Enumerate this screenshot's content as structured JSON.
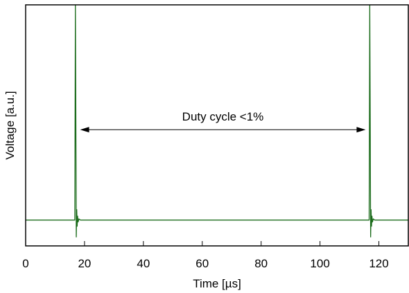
{
  "chart_data": {
    "type": "line",
    "title": "",
    "xlabel": "Time [µs]",
    "ylabel": "Voltage [a.u.]",
    "xlim": [
      0,
      130
    ],
    "ylim": [
      -0.12,
      1.0
    ],
    "x_ticks": [
      0,
      20,
      40,
      60,
      80,
      100,
      120
    ],
    "x_tick_labels": [
      "0",
      "20",
      "40",
      "60",
      "80",
      "100",
      "120"
    ],
    "y_ticks_labeled": false,
    "grid": false,
    "legend": "none",
    "series": [
      {
        "color": "#1a6b1a",
        "x": [
          0,
          16.7,
          16.9,
          17.05,
          17.2,
          17.35,
          17.5,
          17.65,
          17.8,
          18.1,
          18.6,
          116.7,
          116.9,
          117.05,
          117.2,
          117.35,
          117.5,
          117.65,
          117.8,
          118.1,
          118.6,
          130
        ],
        "y": [
          0,
          0,
          1.0,
          0.5,
          -0.08,
          0.05,
          -0.03,
          0.02,
          -0.01,
          0.005,
          0,
          0,
          1.0,
          0.5,
          -0.08,
          0.05,
          -0.03,
          0.02,
          -0.01,
          0.005,
          0,
          0
        ]
      }
    ],
    "annotations": [
      {
        "text": "Duty cycle <1%",
        "type": "double-arrow",
        "x_start": 18.5,
        "x_end": 115.5,
        "y": 0.42
      }
    ]
  }
}
